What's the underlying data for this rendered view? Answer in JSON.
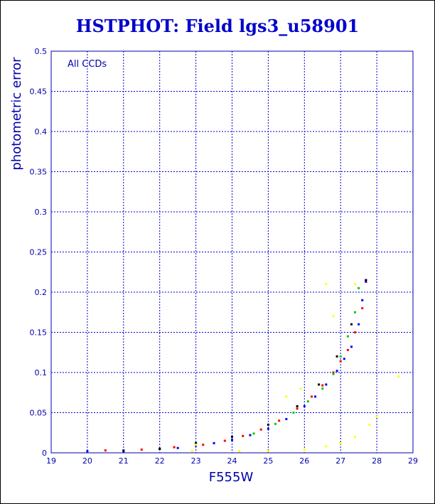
{
  "chart_data": {
    "type": "scatter",
    "title": "HSTPHOT: Field lgs3_u58901",
    "xlabel": "F555W",
    "ylabel": "photometric error",
    "annotation": "All CCDs",
    "xlim": [
      19,
      29
    ],
    "ylim": [
      0,
      0.5
    ],
    "xticks": [
      "19",
      "20",
      "21",
      "22",
      "23",
      "24",
      "25",
      "26",
      "27",
      "28",
      "29"
    ],
    "yticks": [
      "0",
      "0.05",
      "0.1",
      "0.15",
      "0.2",
      "0.25",
      "0.3",
      "0.35",
      "0.4",
      "0.45",
      "0.5"
    ],
    "grid": true,
    "colors": {
      "frame": "#0000aa",
      "grid": "#0000cc",
      "text": "#0000aa",
      "title": "#0000cc",
      "points": [
        "#ff0000",
        "#0000ff",
        "#00cc00",
        "#000000",
        "#ffff00"
      ]
    },
    "series": [
      {
        "color": "#0000ff",
        "points": [
          [
            20.0,
            0.002
          ],
          [
            21.0,
            0.003
          ],
          [
            22.0,
            0.005
          ],
          [
            22.5,
            0.006
          ],
          [
            23.0,
            0.009
          ],
          [
            23.5,
            0.012
          ],
          [
            24.0,
            0.016
          ],
          [
            24.5,
            0.022
          ],
          [
            25.0,
            0.03
          ],
          [
            25.5,
            0.042
          ],
          [
            26.0,
            0.058
          ],
          [
            26.3,
            0.07
          ],
          [
            26.6,
            0.085
          ],
          [
            26.9,
            0.102
          ],
          [
            27.1,
            0.117
          ],
          [
            27.3,
            0.132
          ],
          [
            27.5,
            0.16
          ],
          [
            27.6,
            0.19
          ],
          [
            27.7,
            0.213
          ]
        ]
      },
      {
        "color": "#ff0000",
        "points": [
          [
            20.5,
            0.003
          ],
          [
            21.5,
            0.004
          ],
          [
            22.4,
            0.007
          ],
          [
            23.2,
            0.01
          ],
          [
            23.8,
            0.015
          ],
          [
            24.3,
            0.021
          ],
          [
            24.8,
            0.029
          ],
          [
            25.3,
            0.04
          ],
          [
            25.8,
            0.055
          ],
          [
            26.2,
            0.07
          ],
          [
            26.5,
            0.084
          ],
          [
            26.8,
            0.1
          ],
          [
            27.0,
            0.114
          ],
          [
            27.2,
            0.128
          ],
          [
            27.4,
            0.15
          ],
          [
            27.6,
            0.18
          ],
          [
            27.7,
            0.215
          ]
        ]
      },
      {
        "color": "#00cc00",
        "points": [
          [
            24.6,
            0.024
          ],
          [
            25.2,
            0.036
          ],
          [
            25.7,
            0.05
          ],
          [
            26.1,
            0.064
          ],
          [
            26.5,
            0.08
          ],
          [
            26.8,
            0.098
          ],
          [
            27.0,
            0.12
          ],
          [
            27.2,
            0.145
          ],
          [
            27.4,
            0.175
          ],
          [
            27.5,
            0.205
          ]
        ]
      },
      {
        "color": "#000000",
        "points": [
          [
            21.0,
            0.002
          ],
          [
            22.0,
            0.005
          ],
          [
            23.0,
            0.012
          ],
          [
            24.0,
            0.02
          ],
          [
            25.0,
            0.035
          ],
          [
            25.8,
            0.058
          ],
          [
            26.4,
            0.085
          ],
          [
            26.9,
            0.12
          ],
          [
            27.3,
            0.16
          ],
          [
            27.7,
            0.215
          ]
        ]
      },
      {
        "color": "#ffff00",
        "points": [
          [
            24.2,
            0.002
          ],
          [
            25.0,
            0.002
          ],
          [
            26.0,
            0.004
          ],
          [
            26.6,
            0.008
          ],
          [
            27.0,
            0.012
          ],
          [
            27.4,
            0.02
          ],
          [
            27.8,
            0.035
          ],
          [
            28.0,
            0.045
          ],
          [
            28.6,
            0.095
          ],
          [
            26.8,
            0.17
          ],
          [
            26.6,
            0.21
          ],
          [
            27.4,
            0.21
          ],
          [
            25.9,
            0.08
          ],
          [
            25.5,
            0.07
          ],
          [
            22.9,
            0.002
          ],
          [
            23.0,
            0.01
          ]
        ]
      }
    ]
  }
}
